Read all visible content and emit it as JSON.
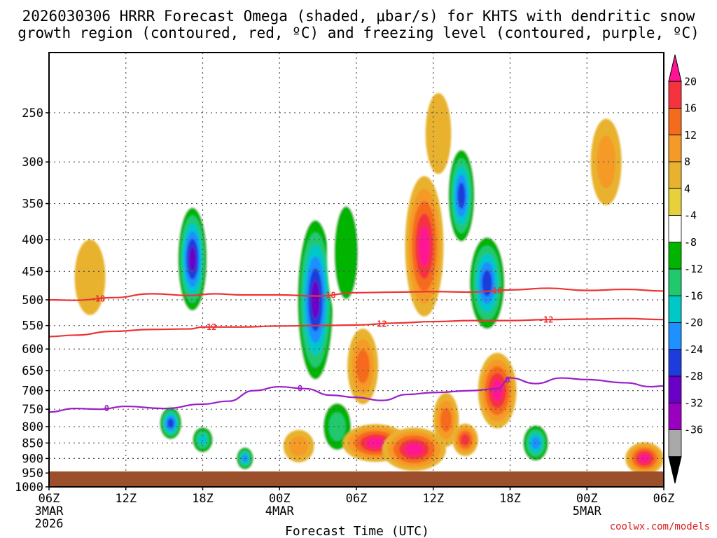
{
  "chart_data": {
    "type": "heatmap",
    "title_line1": "2026030306 HRRR Forecast Omega (shaded, μbar/s) for KHTS with dendritic snow",
    "title_line2": "growth region (contoured, red, ºC) and freezing level (contoured, purple, ºC)",
    "xlabel": "Forecast Time (UTC)",
    "credit": "coolwx.com/models",
    "y_axis": {
      "scale": "log-pressure",
      "range_hpa": [
        200,
        1000
      ],
      "ticks": [
        "250",
        "300",
        "350",
        "400",
        "450",
        "500",
        "550",
        "600",
        "650",
        "700",
        "750",
        "800",
        "850",
        "900",
        "950",
        "1000"
      ]
    },
    "x_axis": {
      "range_hours": [
        0,
        48
      ],
      "ticks": [
        {
          "hour": 0,
          "label": "06Z",
          "sub1": "3MAR",
          "sub2": "2026"
        },
        {
          "hour": 6,
          "label": "12Z"
        },
        {
          "hour": 12,
          "label": "18Z"
        },
        {
          "hour": 18,
          "label": "00Z",
          "sub1": "4MAR"
        },
        {
          "hour": 24,
          "label": "06Z"
        },
        {
          "hour": 30,
          "label": "12Z"
        },
        {
          "hour": 36,
          "label": "18Z"
        },
        {
          "hour": 42,
          "label": "00Z",
          "sub1": "5MAR"
        },
        {
          "hour": 48,
          "label": "06Z"
        }
      ]
    },
    "colorbar": {
      "labels": [
        "20",
        "16",
        "12",
        "8",
        "4",
        "-4",
        "-8",
        "-12",
        "-16",
        "-20",
        "-24",
        "-28",
        "-32",
        "-36"
      ],
      "colors": [
        "#ff1493",
        "#f5333f",
        "#f56b1c",
        "#f59a28",
        "#e8b22e",
        "#e6d13a",
        "#ffffff",
        "#00b400",
        "#20c86e",
        "#00c8c8",
        "#1e90ff",
        "#1e3cdc",
        "#6a00c8",
        "#9a00c0",
        "#a9a9a9",
        "#000000"
      ]
    },
    "contours": {
      "dgz_minus18": {
        "label": "-18",
        "color": "#ee3333",
        "x": [
          0,
          2,
          5,
          8,
          11,
          13,
          15,
          18,
          21,
          24,
          27,
          30,
          33,
          36,
          39,
          42,
          45,
          48
        ],
        "p": [
          500,
          501,
          496,
          489,
          492,
          489,
          491,
          491,
          493,
          487,
          486,
          485,
          486,
          482,
          479,
          483,
          481,
          484
        ]
      },
      "dgz_minus12": {
        "label": "-12",
        "color": "#ee3333",
        "x": [
          0,
          2,
          5,
          8,
          11,
          12,
          15,
          18,
          21,
          24,
          27,
          30,
          33,
          36,
          39,
          42,
          45,
          48
        ],
        "p": [
          573,
          570,
          562,
          558,
          557,
          553,
          553,
          551,
          550,
          549,
          545,
          542,
          540,
          540,
          538,
          537,
          536,
          538
        ]
      },
      "freezing_level": {
        "label": "0",
        "color": "#9a1fc8",
        "x": [
          0,
          2,
          4,
          6,
          9,
          12,
          14,
          16,
          18,
          20,
          22,
          24,
          26,
          28,
          30,
          33,
          35,
          36,
          38,
          40,
          42,
          45,
          47,
          48
        ],
        "p": [
          758,
          748,
          750,
          742,
          748,
          736,
          728,
          700,
          690,
          695,
          712,
          718,
          726,
          710,
          705,
          700,
          695,
          668,
          682,
          668,
          672,
          680,
          690,
          688
        ]
      }
    },
    "omega_cells": [
      {
        "h": 3.2,
        "p": 460,
        "v": 6,
        "w": 1.2,
        "d": 0.14
      },
      {
        "h": 11.2,
        "p": 430,
        "v": -28,
        "w": 1.3,
        "d": 0.22
      },
      {
        "h": 9.5,
        "p": 790,
        "v": -24,
        "w": 1.0,
        "d": 0.07
      },
      {
        "h": 12.0,
        "p": 840,
        "v": -16,
        "w": 1.0,
        "d": 0.06
      },
      {
        "h": 15.3,
        "p": 900,
        "v": -20,
        "w": 0.8,
        "d": 0.05
      },
      {
        "h": 19.5,
        "p": 860,
        "v": 8,
        "w": 1.2,
        "d": 0.06
      },
      {
        "h": 20.8,
        "p": 500,
        "v": -30,
        "w": 1.6,
        "d": 0.34
      },
      {
        "h": 22.5,
        "p": 800,
        "v": -14,
        "w": 1.5,
        "d": 0.12
      },
      {
        "h": 23.2,
        "p": 420,
        "v": -10,
        "w": 1.5,
        "d": 0.28
      },
      {
        "h": 24.5,
        "p": 640,
        "v": 12,
        "w": 1.2,
        "d": 0.14
      },
      {
        "h": 25.5,
        "p": 850,
        "v": 24,
        "w": 2.6,
        "d": 0.07
      },
      {
        "h": 28.5,
        "p": 870,
        "v": 24,
        "w": 2.5,
        "d": 0.08
      },
      {
        "h": 31.0,
        "p": 780,
        "v": 14,
        "w": 1.0,
        "d": 0.1
      },
      {
        "h": 29.3,
        "p": 410,
        "v": 22,
        "w": 1.5,
        "d": 0.26
      },
      {
        "h": 30.4,
        "p": 270,
        "v": 6,
        "w": 1.0,
        "d": 0.15
      },
      {
        "h": 32.2,
        "p": 340,
        "v": -24,
        "w": 1.2,
        "d": 0.2
      },
      {
        "h": 34.2,
        "p": 470,
        "v": -24,
        "w": 1.6,
        "d": 0.2
      },
      {
        "h": 35.0,
        "p": 700,
        "v": 20,
        "w": 1.5,
        "d": 0.14
      },
      {
        "h": 32.5,
        "p": 840,
        "v": 16,
        "w": 1.0,
        "d": 0.06
      },
      {
        "h": 38.0,
        "p": 850,
        "v": -20,
        "w": 1.2,
        "d": 0.08
      },
      {
        "h": 43.5,
        "p": 300,
        "v": 10,
        "w": 1.2,
        "d": 0.16
      },
      {
        "h": 46.5,
        "p": 900,
        "v": 20,
        "w": 1.5,
        "d": 0.06
      }
    ]
  }
}
